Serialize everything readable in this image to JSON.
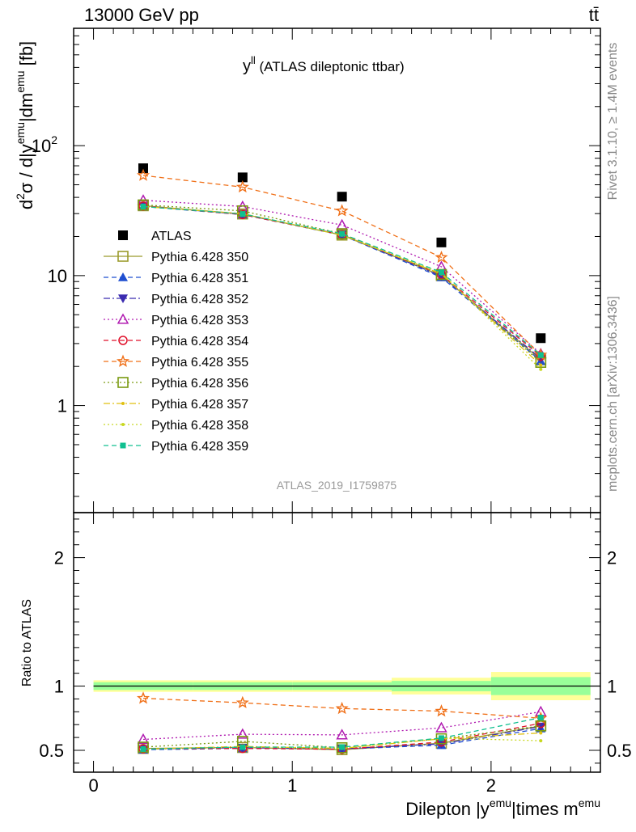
{
  "header": {
    "left": "13000 GeV pp",
    "right": "tt̄"
  },
  "plot_title": {
    "main": "y",
    "sup": "ll",
    "sub": " (ATLAS dileptonic ttbar)"
  },
  "side_labels": {
    "rivet": "Rivet 3.1.10, ≥ 1.4M events",
    "mcplots": "mcplots.cern.ch [arXiv:1306.3436]"
  },
  "analysis_id": "ATLAS_2019_I1759875",
  "colors": {
    "atlas": "#000000",
    "p350": "#9b9b2c",
    "p351": "#1f4fd0",
    "p352": "#3b2cb0",
    "p353": "#b01ab0",
    "p354": "#e0102a",
    "p355": "#f07018",
    "p356": "#7a9a10",
    "p357": "#e0c010",
    "p358": "#c8d820",
    "p359": "#10c090",
    "band_yellow": "#ffff99",
    "band_green": "#99ff99"
  },
  "chart_data": [
    {
      "type": "line",
      "panel": "main",
      "ylabel": {
        "parts": [
          "d",
          "2",
          "σ / d|y",
          "emu",
          "|dm",
          "emu",
          " [fb]"
        ]
      },
      "yscale": "log",
      "ylim": [
        0.15,
        800
      ],
      "xlim": [
        -0.1,
        2.55
      ],
      "y_ticks": [
        {
          "v": 1,
          "label": "1"
        },
        {
          "v": 10,
          "label": "10"
        },
        {
          "v": 100,
          "label": "10",
          "sup": "2"
        }
      ],
      "x": [
        0.25,
        0.75,
        1.25,
        1.75,
        2.25
      ],
      "legend_position": "left-center",
      "series": [
        {
          "name": "ATLAS",
          "key": "atlas",
          "values": [
            67,
            57,
            40.5,
            18,
            3.3
          ],
          "marker": "square-filled",
          "line": "none"
        },
        {
          "name": "Pythia 6.428 350",
          "key": "p350",
          "values": [
            34.5,
            29.8,
            20.5,
            10.0,
            2.25
          ],
          "marker": "square-open",
          "line": "solid"
        },
        {
          "name": "Pythia 6.428 351",
          "key": "p351",
          "values": [
            34.0,
            29.5,
            20.5,
            9.7,
            2.2
          ],
          "marker": "triangle-up-filled",
          "line": "dashed"
        },
        {
          "name": "Pythia 6.428 352",
          "key": "p352",
          "values": [
            34.2,
            29.6,
            20.7,
            9.9,
            2.3
          ],
          "marker": "triangle-down-filled",
          "line": "dashdot"
        },
        {
          "name": "Pythia 6.428 353",
          "key": "p353",
          "values": [
            38.0,
            34.0,
            24.5,
            11.7,
            2.5
          ],
          "marker": "triangle-up-open",
          "line": "dotted"
        },
        {
          "name": "Pythia 6.428 354",
          "key": "p354",
          "values": [
            34.3,
            29.5,
            20.6,
            10.2,
            2.4
          ],
          "marker": "circle-open",
          "line": "dashed"
        },
        {
          "name": "Pythia 6.428 355",
          "key": "p355",
          "values": [
            59.0,
            48.0,
            31.5,
            13.8,
            2.45
          ],
          "marker": "star-open",
          "line": "dashed"
        },
        {
          "name": "Pythia 6.428 356",
          "key": "p356",
          "values": [
            35.0,
            31.5,
            21.0,
            10.2,
            2.15
          ],
          "marker": "square-open",
          "line": "dotted"
        },
        {
          "name": "Pythia 6.428 357",
          "key": "p357",
          "values": [
            34.0,
            30.0,
            20.5,
            10.3,
            2.05
          ],
          "marker": "dot-small",
          "line": "dashdot"
        },
        {
          "name": "Pythia 6.428 358",
          "key": "p358",
          "values": [
            34.0,
            29.8,
            20.5,
            10.5,
            1.9
          ],
          "marker": "dot-small",
          "line": "dotted"
        },
        {
          "name": "Pythia 6.428 359",
          "key": "p359",
          "values": [
            34.0,
            29.8,
            21.0,
            10.6,
            2.45
          ],
          "marker": "square-filled-small",
          "line": "dashed"
        }
      ]
    },
    {
      "type": "line",
      "panel": "ratio",
      "ylabel": "Ratio to ATLAS",
      "xlabel": {
        "parts": [
          "Dilepton |y",
          "emu",
          "|times m",
          "emu"
        ]
      },
      "ylim": [
        0.33,
        2.35
      ],
      "xlim": [
        -0.1,
        2.55
      ],
      "y_ticks": [
        {
          "v": 0.5,
          "label": "0.5"
        },
        {
          "v": 1,
          "label": "1"
        },
        {
          "v": 2,
          "label": "2"
        }
      ],
      "x_ticks": [
        {
          "v": 0,
          "label": "0"
        },
        {
          "v": 1,
          "label": "1"
        },
        {
          "v": 2,
          "label": "2"
        }
      ],
      "x": [
        0.25,
        0.75,
        1.25,
        1.75,
        2.25
      ],
      "bands": [
        {
          "x0": 0.0,
          "x1": 0.5,
          "yellow": [
            0.955,
            1.045
          ],
          "green": [
            0.97,
            1.03
          ]
        },
        {
          "x0": 0.5,
          "x1": 1.0,
          "yellow": [
            0.955,
            1.045
          ],
          "green": [
            0.97,
            1.03
          ]
        },
        {
          "x0": 1.0,
          "x1": 1.5,
          "yellow": [
            0.955,
            1.045
          ],
          "green": [
            0.97,
            1.03
          ]
        },
        {
          "x0": 1.5,
          "x1": 2.0,
          "yellow": [
            0.935,
            1.065
          ],
          "green": [
            0.96,
            1.04
          ]
        },
        {
          "x0": 2.0,
          "x1": 2.5,
          "yellow": [
            0.89,
            1.11
          ],
          "green": [
            0.93,
            1.07
          ]
        }
      ],
      "series": [
        {
          "key": "p350",
          "values": [
            0.515,
            0.522,
            0.505,
            0.555,
            0.69
          ]
        },
        {
          "key": "p351",
          "values": [
            0.505,
            0.515,
            0.51,
            0.54,
            0.67
          ]
        },
        {
          "key": "p352",
          "values": [
            0.51,
            0.52,
            0.512,
            0.55,
            0.685
          ]
        },
        {
          "key": "p353",
          "values": [
            0.585,
            0.625,
            0.62,
            0.675,
            0.8
          ]
        },
        {
          "key": "p354",
          "values": [
            0.512,
            0.515,
            0.508,
            0.565,
            0.71
          ]
        },
        {
          "key": "p355",
          "values": [
            0.905,
            0.87,
            0.825,
            0.805,
            0.75
          ]
        },
        {
          "key": "p356",
          "values": [
            0.525,
            0.57,
            0.52,
            0.59,
            0.69
          ]
        },
        {
          "key": "p357",
          "values": [
            0.51,
            0.53,
            0.515,
            0.59,
            0.635
          ]
        },
        {
          "key": "p358",
          "values": [
            0.51,
            0.525,
            0.515,
            0.595,
            0.575
          ]
        },
        {
          "key": "p359",
          "values": [
            0.51,
            0.525,
            0.525,
            0.595,
            0.755
          ]
        }
      ]
    }
  ]
}
